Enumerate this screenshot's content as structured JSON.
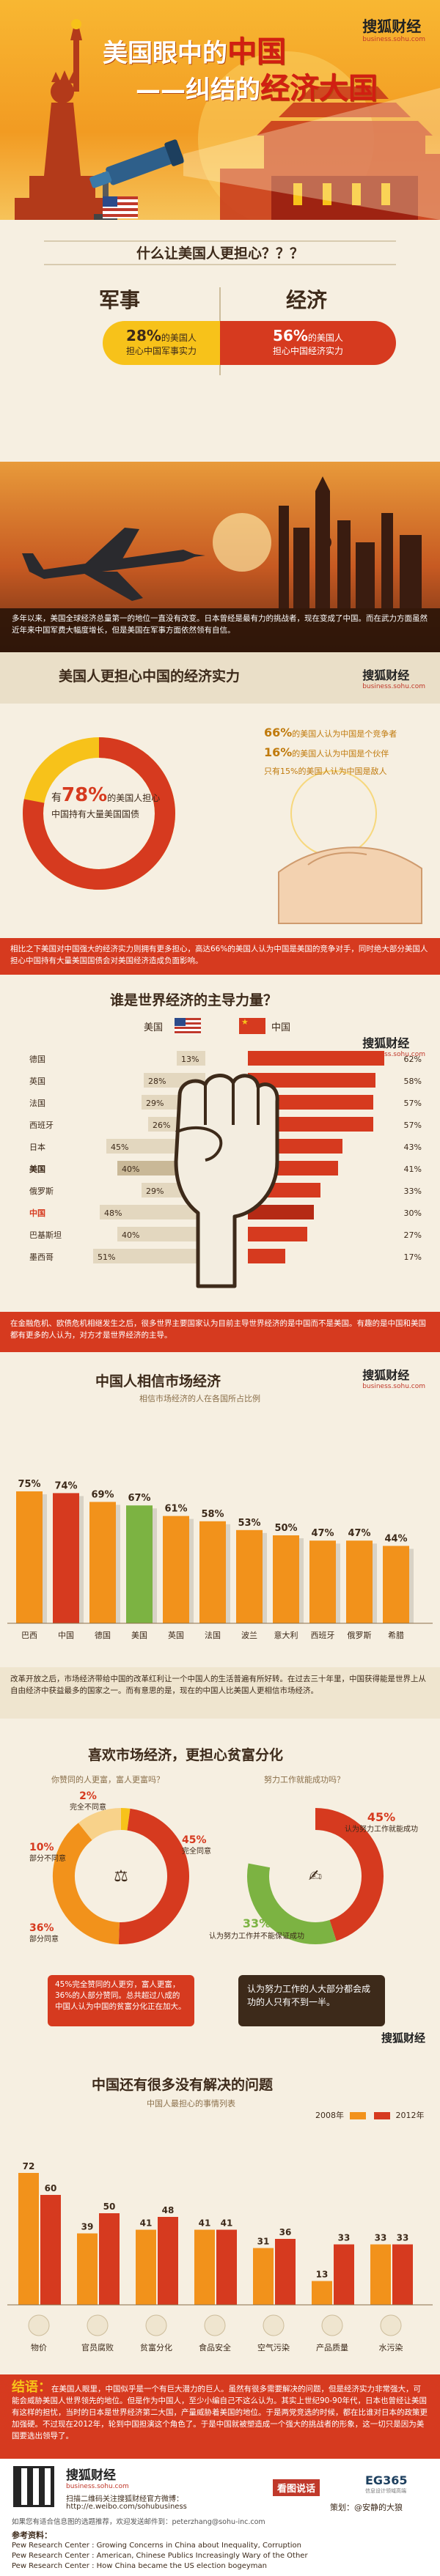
{
  "header": {
    "title_line1_prefix": "美国眼中的",
    "title_line1_emph": "中国",
    "title_line2_prefix": "——纠结的",
    "title_line2_emph": "经济大国",
    "brand": "搜狐财经",
    "brand_url": "business.sohu.com"
  },
  "question": {
    "text": "什么让美国人更担心？？？",
    "military_label": "军事",
    "economy_label": "经济",
    "military_pct": "28%",
    "military_line1": "的美国人",
    "military_line2": "担心中国军事实力",
    "economy_pct": "56%",
    "economy_line1": "的美国人",
    "economy_line2": "担心中国经济实力"
  },
  "intro": {
    "text": "多年以来，美国全球经济总量第一的地位一直没有改变。日本曾经是最有力的挑战者，现在变成了中国。而在武力方面虽然近年来中国军费大幅度增长，但是美国在军事方面依然领有自信。"
  },
  "worry": {
    "title": "美国人更担心中国的经济实力",
    "brand": "搜狐财经",
    "brand_url": "business.sohu.com",
    "have_prefix": "有",
    "have_pct": "78%",
    "have_line1": "的美国人担心",
    "have_line2": "中国持有大量美国国债",
    "items": [
      {
        "pct": "66%",
        "text": "的美国人认为中国是个竞争者"
      },
      {
        "pct": "16%",
        "text": "的美国人认为中国是个伙伴"
      },
      {
        "pct": "15%",
        "text": "只有15%的美国人认为中国是敌人"
      }
    ],
    "items_prefix": [
      "",
      "",
      "只有"
    ],
    "note": "相比之下美国对中国强大的经济实力则拥有更多担心，高达66%的美国人认为中国是美国的竞争对手，同时绝大部分美国人担心中国持有大量美国国债会对美国经济造成负面影响。"
  },
  "leader": {
    "title": "谁是世界经济的主导力量？",
    "us_label": "美国",
    "cn_label": "中国",
    "brand": "搜狐财经",
    "brand_url": "business.sohu.com",
    "rows": [
      {
        "country": "德国",
        "us": "13%",
        "cn": "62%",
        "usv": 13,
        "cnv": 62
      },
      {
        "country": "英国",
        "us": "28%",
        "cn": "58%",
        "usv": 28,
        "cnv": 58
      },
      {
        "country": "法国",
        "us": "29%",
        "cn": "57%",
        "usv": 29,
        "cnv": 57
      },
      {
        "country": "西班牙",
        "us": "26%",
        "cn": "57%",
        "usv": 26,
        "cnv": 57
      },
      {
        "country": "日本",
        "us": "45%",
        "cn": "43%",
        "usv": 45,
        "cnv": 43
      },
      {
        "country": "美国",
        "us": "40%",
        "cn": "41%",
        "usv": 40,
        "cnv": 41
      },
      {
        "country": "俄罗斯",
        "us": "29%",
        "cn": "33%",
        "usv": 29,
        "cnv": 33
      },
      {
        "country": "中国",
        "us": "48%",
        "cn": "30%",
        "usv": 48,
        "cnv": 30
      },
      {
        "country": "巴基斯坦",
        "us": "40%",
        "cn": "27%",
        "usv": 40,
        "cnv": 27
      },
      {
        "country": "墨西哥",
        "us": "51%",
        "cn": "17%",
        "usv": 51,
        "cnv": 17
      }
    ],
    "note": "在金融危机、欧债危机相继发生之后，很多世界主要国家认为目前主导世界经济的是中国而不是美国。有趣的是中国和美国都有更多的人认为，对方才是世界经济的主导。"
  },
  "market": {
    "title": "中国人相信市场经济",
    "subtitle": "相信市场经济的人在各国所占比例",
    "brand": "搜狐财经",
    "brand_url": "business.sohu.com",
    "chart_data": {
      "type": "bar",
      "categories": [
        "巴西",
        "中国",
        "德国",
        "美国",
        "英国",
        "法国",
        "波兰",
        "意大利",
        "西班牙",
        "俄罗斯",
        "希腊"
      ],
      "values": [
        75,
        74,
        69,
        67,
        61,
        58,
        53,
        50,
        47,
        47,
        44
      ],
      "labels": [
        "75%",
        "74%",
        "69%",
        "67%",
        "61%",
        "58%",
        "53%",
        "50%",
        "47%",
        "47%",
        "44%"
      ],
      "ylim": [
        0,
        100
      ]
    },
    "note": "改革开放之后，市场经济带给中国的改革红利让一个中国人的生活普遍有所好转。在过去三十年里，中国获得能是世界上从自由经济中获益最多的国家之一。而有意思的是，现在的中国人比美国人更相信市场经济。"
  },
  "inequality": {
    "title": "喜欢市场经济，更担心贫富分化",
    "left_question": "你赞同的人更富，富人更富吗？",
    "right_question": "努力工作就能成功吗？",
    "left_slices": [
      {
        "label": "完全不同意",
        "pct": "2%",
        "value": 2
      },
      {
        "label": "完全同意",
        "pct": "45%",
        "value": 45
      },
      {
        "label": "部分同意",
        "pct": "36%",
        "value": 36
      },
      {
        "label": "部分不同意",
        "pct": "10%",
        "value": 10
      }
    ],
    "right_slices": [
      {
        "label": "认为努力工作就能成功",
        "pct": "45%",
        "value": 45
      },
      {
        "label": "认为努力工作并不能保证成功",
        "pct": "33%",
        "value": 33
      }
    ],
    "left_note": "45%完全赞同的人更穷，富人更富，36%的人部分赞同。总共超过八成的中国人认为中国的贫富分化正在加大。",
    "right_note": "认为努力工作的人大部分都会成功的人只有不到一半。",
    "brand": "搜狐财经",
    "brand_url": "business.sohu.com"
  },
  "problems": {
    "title": "中国还有很多没有解决的问题",
    "subtitle": "中国人最担心的事情列表",
    "legend": [
      "2008年",
      "2012年"
    ],
    "chart_data": {
      "type": "bar",
      "categories": [
        "物价",
        "官员腐败",
        "贫富分化",
        "食品安全",
        "空气污染",
        "产品质量",
        "水污染"
      ],
      "series": [
        {
          "name": "2008年",
          "values": [
            72,
            39,
            41,
            41,
            31,
            13,
            33
          ]
        },
        {
          "name": "2012年",
          "values": [
            60,
            50,
            48,
            41,
            36,
            33,
            33
          ]
        }
      ],
      "ylim": [
        0,
        80
      ]
    }
  },
  "conclusion": {
    "label": "结语：",
    "text": "在美国人眼里，中国似乎是一个有巨大潜力的巨人。虽然有很多需要解决的问题，但是经济实力非常强大，可能会威胁美国人世界领先的地位。但是作为中国人，至少小编自己不这么认为。其实上世纪90-90年代，日本也曾经让美国有这样的担忧，当时的日本是世界经济第二大国，产量威胁着美国的地位。于是两党竞选的时候，都在比谁对日本的政策更加强硬。不过现在2012年，轮到中国担演这个角色了。于是中国就被塑造成一个强大的挑战者的形象，这一切只是因为美国要选出领导了。"
  },
  "footer": {
    "brand": "搜狐财经",
    "brand_url": "business.sohu.com",
    "scan_text": "扫描二维码关注搜狐财经官方微博：",
    "weibo_url": "http://e.weibo.com/sohubusiness",
    "partner1": "看图说话",
    "partner2": "EG365",
    "partner2_sub": "信息设计领域高端",
    "credit_label": "策划：",
    "credit_name": "@安静的大狼",
    "contact": "如果您有适合信息图的选题推荐，欢迎发送邮件到：peterzhang@sohu-inc.com",
    "refs_title": "参考资料：",
    "refs": [
      "Pew Research Center : Growing Concerns in China about Inequality, Corruption",
      "Pew Research Center : American, Chinese Publics Increasingly Wary of the Other",
      "Pew Research Center : How China became the US election bogeyman"
    ]
  },
  "colors": {
    "red": "#d63a1f",
    "orange": "#f2921b",
    "yellow": "#f7c21a",
    "cream": "#f6efe1",
    "dark": "#3d2a1a"
  }
}
